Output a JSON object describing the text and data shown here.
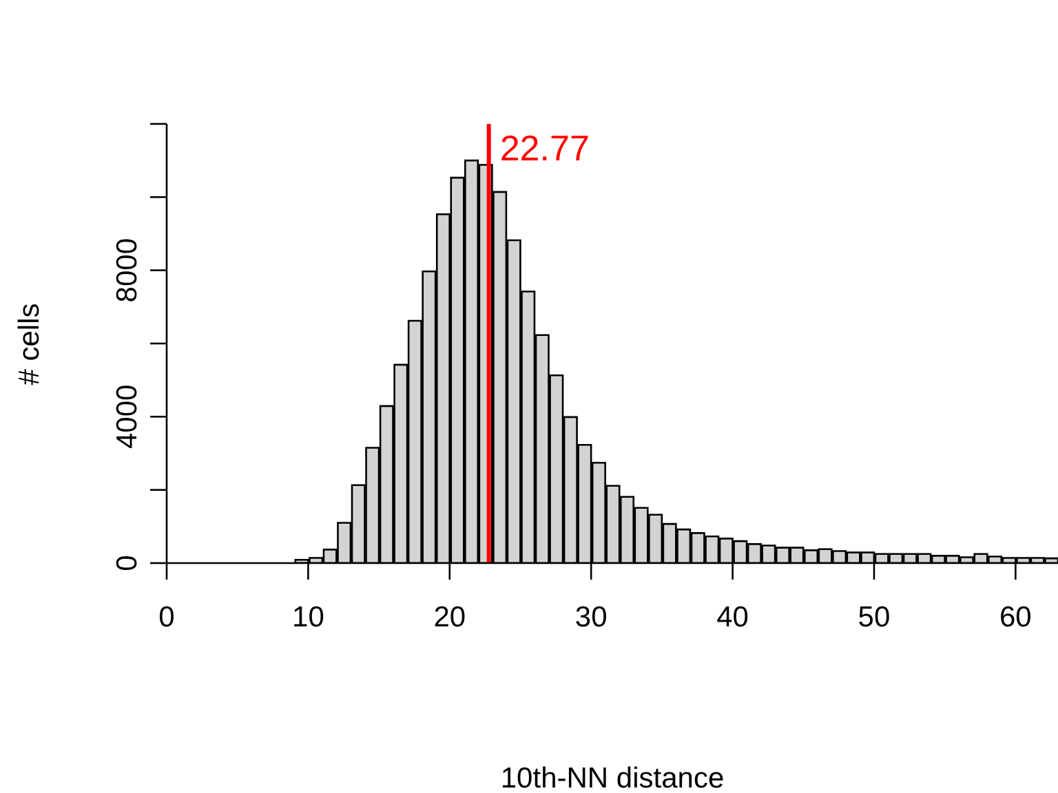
{
  "chart_data": {
    "type": "histogram",
    "xlabel": "10th-NN distance",
    "ylabel": "# cells",
    "bins": [
      7,
      8,
      9,
      10,
      11,
      12,
      13,
      14,
      15,
      16,
      17,
      18,
      19,
      20,
      21,
      22,
      23,
      24,
      25,
      26,
      27,
      28,
      29,
      30,
      31,
      32,
      33,
      34,
      35,
      36,
      37,
      38,
      39,
      40,
      41,
      42,
      43,
      44,
      45,
      46,
      47,
      48,
      49,
      50,
      51,
      52,
      53,
      54,
      55,
      56,
      57,
      58,
      59,
      60,
      61,
      62,
      63
    ],
    "values": [
      null,
      null,
      90,
      140,
      370,
      1100,
      2130,
      3150,
      4290,
      5420,
      6620,
      7970,
      9530,
      10530,
      11000,
      10880,
      10140,
      8820,
      7420,
      6230,
      5130,
      3990,
      3230,
      2740,
      2110,
      1810,
      1510,
      1320,
      1070,
      920,
      820,
      730,
      670,
      600,
      520,
      480,
      420,
      420,
      350,
      380,
      330,
      290,
      290,
      250,
      250,
      250,
      250,
      200,
      200,
      160,
      250,
      180,
      140,
      140,
      140,
      130
    ],
    "color": "#d3d3d3",
    "xlim": [
      0,
      63
    ],
    "xticks": [
      0,
      10,
      20,
      30,
      40,
      50,
      60
    ],
    "ylim": [
      0,
      12000
    ],
    "yticks": [
      0,
      {
        "value": 2000,
        "label": null
      },
      4000,
      {
        "value": 6000,
        "label": null
      },
      8000,
      {
        "value": 10000,
        "label": null
      },
      {
        "value": 12000,
        "label": null
      }
    ],
    "ref_lines": [
      {
        "axis": "x",
        "value": 22.77,
        "label": "22.77",
        "color": "#ff0000"
      }
    ],
    "grid": false,
    "legend": false
  }
}
